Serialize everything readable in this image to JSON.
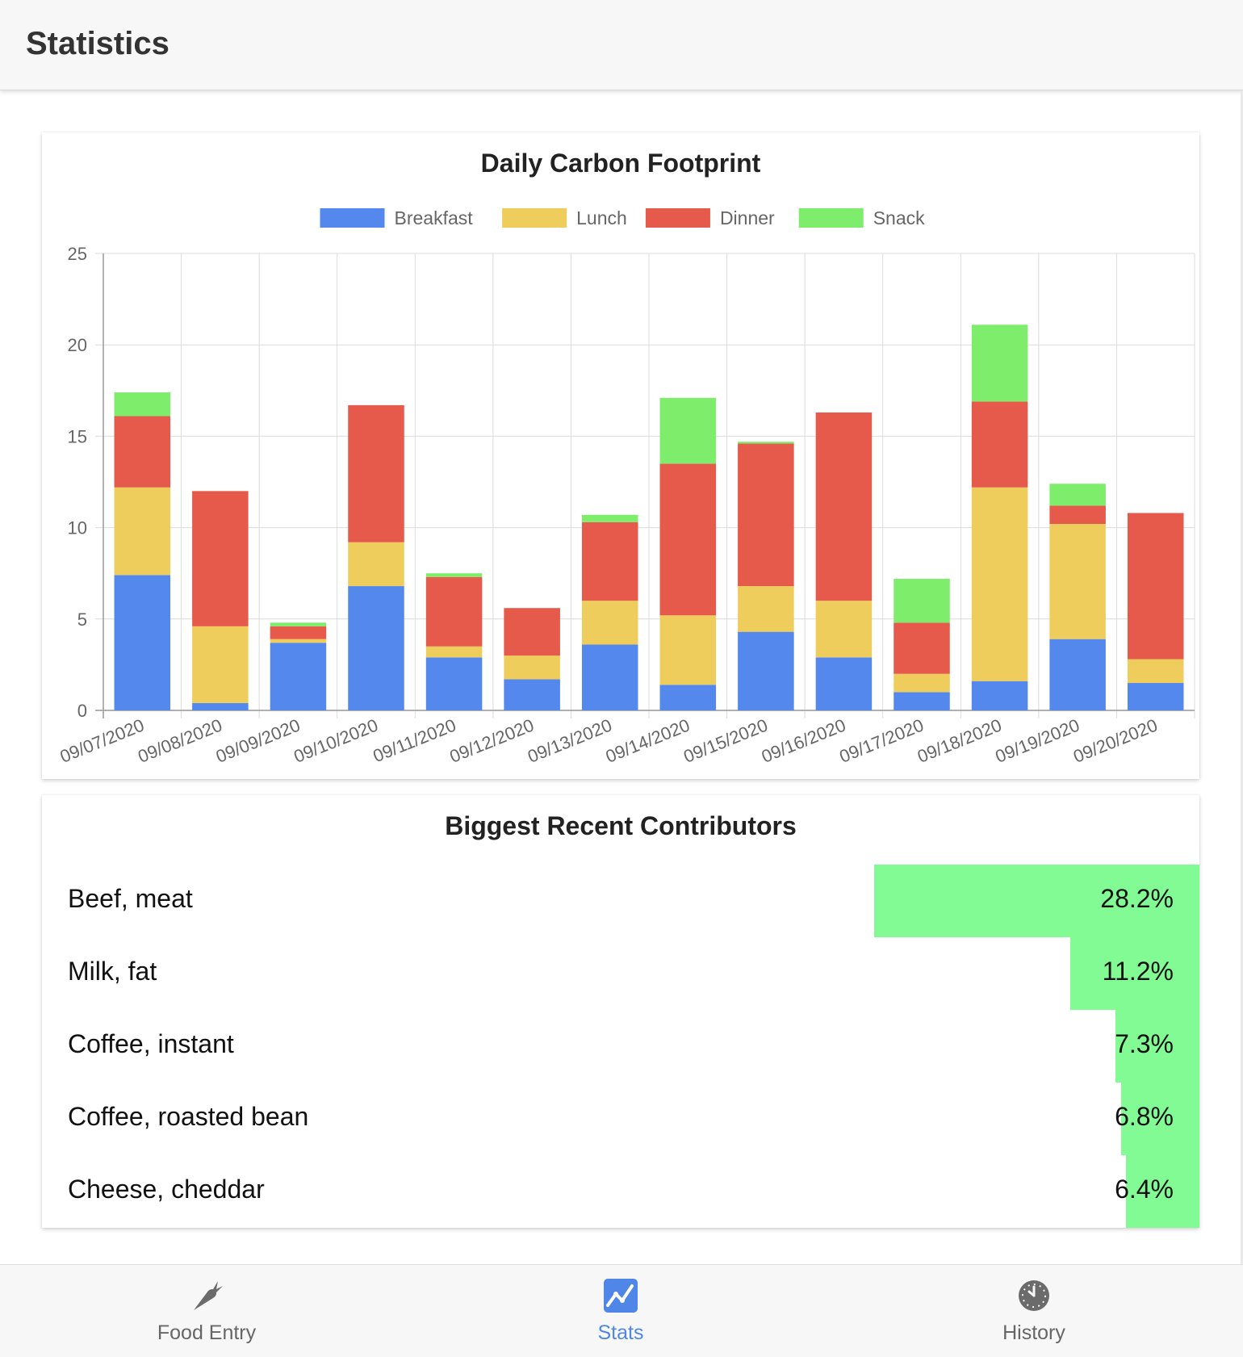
{
  "header": {
    "title": "Statistics"
  },
  "chart_data": {
    "type": "bar",
    "stacked": true,
    "title": "Daily Carbon Footprint",
    "categories": [
      "09/07/2020",
      "09/08/2020",
      "09/09/2020",
      "09/10/2020",
      "09/11/2020",
      "09/12/2020",
      "09/13/2020",
      "09/14/2020",
      "09/15/2020",
      "09/16/2020",
      "09/17/2020",
      "09/18/2020",
      "09/19/2020",
      "09/20/2020"
    ],
    "series": [
      {
        "name": "Breakfast",
        "color": "#5488ed",
        "values": [
          7.4,
          0.4,
          3.7,
          6.8,
          2.9,
          1.7,
          3.6,
          1.4,
          4.3,
          2.9,
          1.0,
          1.6,
          3.9,
          1.5
        ]
      },
      {
        "name": "Lunch",
        "color": "#eecd5d",
        "values": [
          4.8,
          4.2,
          0.2,
          2.4,
          0.6,
          1.3,
          2.4,
          3.8,
          2.5,
          3.1,
          1.0,
          10.6,
          6.3,
          1.3
        ]
      },
      {
        "name": "Dinner",
        "color": "#e55a4b",
        "values": [
          3.9,
          7.4,
          0.7,
          7.5,
          3.8,
          2.6,
          4.3,
          8.3,
          7.8,
          10.3,
          2.8,
          4.7,
          1.0,
          8.0
        ]
      },
      {
        "name": "Snack",
        "color": "#7eed6b",
        "values": [
          1.3,
          0.0,
          0.2,
          0.0,
          0.2,
          0.0,
          0.4,
          3.6,
          0.1,
          0.0,
          2.4,
          4.2,
          1.2,
          0.0
        ]
      }
    ],
    "yticks": [
      "0",
      "5",
      "10",
      "15",
      "20",
      "25"
    ],
    "ylim": [
      0,
      25
    ],
    "grid": true,
    "legend": "top"
  },
  "contributors": {
    "title": "Biggest Recent Contributors",
    "bar_color": "#82fb95",
    "items": [
      {
        "name": "Beef, meat",
        "percent_label": "28.2%",
        "percent": 28.2
      },
      {
        "name": "Milk, fat",
        "percent_label": "11.2%",
        "percent": 11.2
      },
      {
        "name": "Coffee, instant",
        "percent_label": "7.3%",
        "percent": 7.3
      },
      {
        "name": "Coffee, roasted bean",
        "percent_label": "6.8%",
        "percent": 6.8
      },
      {
        "name": "Cheese, cheddar",
        "percent_label": "6.4%",
        "percent": 6.4
      }
    ]
  },
  "tabs": [
    {
      "label": "Food Entry",
      "icon": "carrot-icon",
      "active": false
    },
    {
      "label": "Stats",
      "icon": "chart-line-icon",
      "active": true
    },
    {
      "label": "History",
      "icon": "clock-icon",
      "active": false
    }
  ]
}
